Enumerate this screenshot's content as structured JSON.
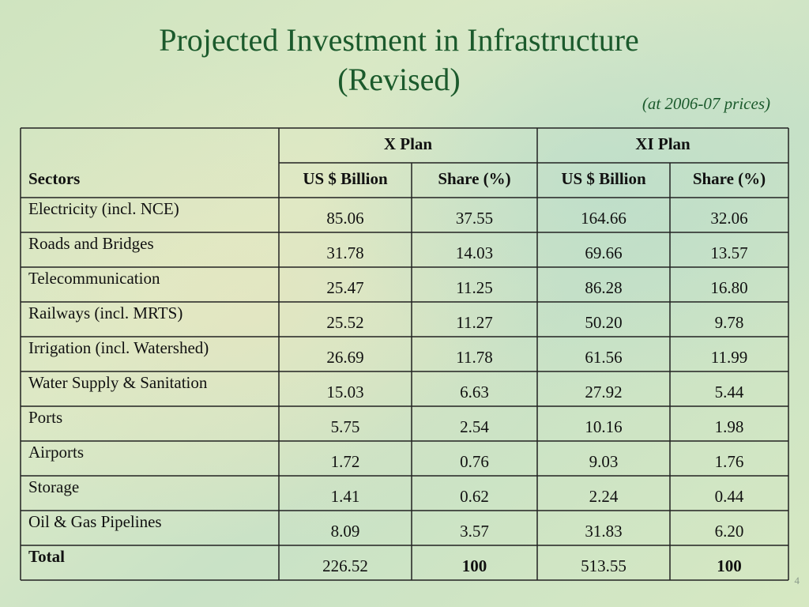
{
  "header": {
    "title_lines": [
      "Projected Investment in Infrastructure",
      "(Revised)"
    ],
    "note": "(at 2006-07 prices)"
  },
  "table": {
    "groups": [
      "X Plan",
      "XI Plan"
    ],
    "columns": [
      "Sectors",
      "US $ Billion",
      "Share (%)",
      "US $ Billion",
      "Share (%)"
    ],
    "rows": [
      [
        "Electricity (incl. NCE)",
        "85.06",
        "37.55",
        "164.66",
        "32.06"
      ],
      [
        "Roads and Bridges",
        "31.78",
        "14.03",
        "69.66",
        "13.57"
      ],
      [
        "Telecommunication",
        "25.47",
        "11.25",
        "86.28",
        "16.80"
      ],
      [
        "Railways (incl. MRTS)",
        "25.52",
        "11.27",
        "50.20",
        "9.78"
      ],
      [
        "Irrigation (incl. Watershed)",
        "26.69",
        "11.78",
        "61.56",
        "11.99"
      ],
      [
        "Water Supply & Sanitation",
        "15.03",
        "6.63",
        "27.92",
        "5.44"
      ],
      [
        "Ports",
        "5.75",
        "2.54",
        "10.16",
        "1.98"
      ],
      [
        "Airports",
        "1.72",
        "0.76",
        "9.03",
        "1.76"
      ],
      [
        "Storage",
        "1.41",
        "0.62",
        "2.24",
        "0.44"
      ],
      [
        "Oil & Gas Pipelines",
        "8.09",
        "3.57",
        "31.83",
        "6.20"
      ],
      [
        "Total",
        "226.52",
        "100",
        "513.55",
        "100"
      ]
    ]
  },
  "footer": {
    "page_number": "4"
  }
}
